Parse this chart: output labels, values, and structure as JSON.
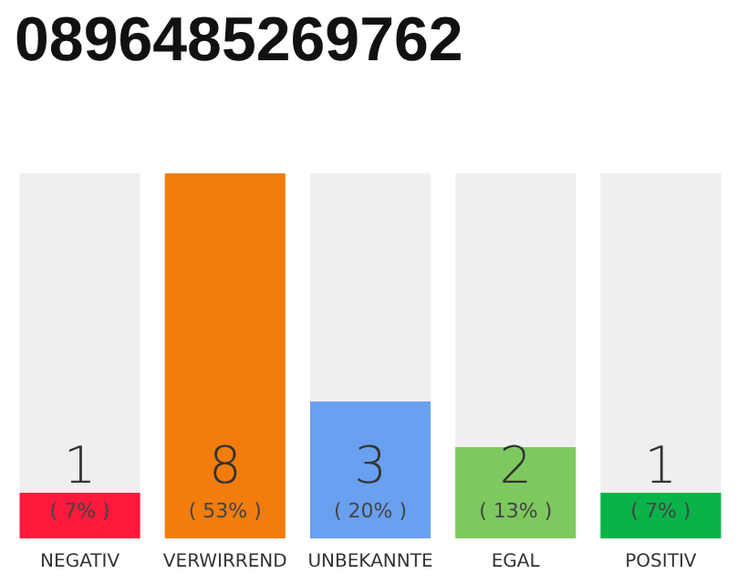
{
  "chart_data": {
    "type": "bar",
    "title": "0896485269762",
    "categories": [
      "NEGATIV",
      "VERWIRREND",
      "UNBEKANNTE",
      "EGAL",
      "POSITIV"
    ],
    "values": [
      1,
      8,
      3,
      2,
      1
    ],
    "colors": [
      "#ff1a3c",
      "#f27d0c",
      "#6aa0f0",
      "#7dc95e",
      "#0ab34a"
    ],
    "value_labels": [
      "1\n( 7% )",
      "8\n( 53% )",
      "3\n( 20% )",
      "2\n( 13% )",
      "1\n( 7% )"
    ],
    "grid": false
  }
}
